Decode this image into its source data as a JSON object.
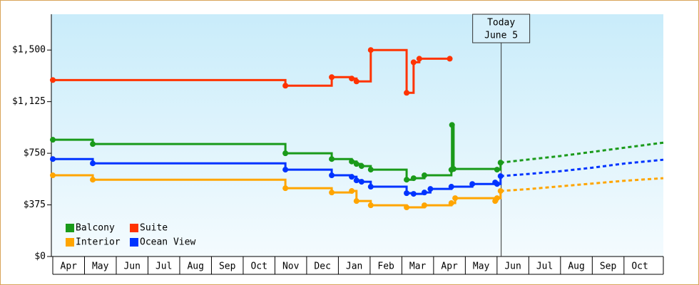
{
  "chart_data": {
    "type": "step",
    "ylim": [
      0,
      1760
    ],
    "yticks": [
      {
        "value": 0,
        "label": "$0"
      },
      {
        "value": 375,
        "label": "$375"
      },
      {
        "value": 750,
        "label": "$750"
      },
      {
        "value": 1125,
        "label": "$1,125"
      },
      {
        "value": 1500,
        "label": "$1,500"
      }
    ],
    "xlim": [
      0,
      19.24
    ],
    "categories": [
      "Apr",
      "May",
      "Jun",
      "Jul",
      "Aug",
      "Sep",
      "Oct",
      "Nov",
      "Dec",
      "Jan",
      "Feb",
      "Mar",
      "Apr",
      "May",
      "Jun",
      "Jul",
      "Aug",
      "Sep",
      "Oct"
    ],
    "legend": "lower left",
    "annotation": {
      "lines": [
        "Today",
        "June 5"
      ],
      "x": 14.13
    },
    "series": [
      {
        "name": "Balcony",
        "color": "#1a9a1a",
        "x": [
          0,
          1.26,
          7.33,
          8.79,
          9.42,
          9.57,
          9.73,
          10.02,
          11.15,
          11.37,
          11.71,
          12.56,
          12.58,
          12.63,
          14.0,
          14.11
        ],
        "values": [
          848,
          817,
          750,
          708,
          690,
          672,
          657,
          631,
          558,
          569,
          590,
          630,
          956,
          636,
          631,
          682
        ],
        "forecast_x": [
          14.11,
          15,
          16,
          17,
          18,
          19.24
        ],
        "forecast_values": [
          682,
          705,
          730,
          760,
          790,
          827
        ]
      },
      {
        "name": "Suite",
        "color": "#ff3300",
        "x": [
          0,
          7.33,
          8.79,
          9.42,
          9.57,
          10.02,
          11.15,
          11.37,
          11.55,
          12.51
        ],
        "values": [
          1282,
          1241,
          1303,
          1293,
          1272,
          1500,
          1189,
          1411,
          1437,
          1437
        ]
      },
      {
        "name": "Interior",
        "color": "#ffa500",
        "x": [
          0,
          1.26,
          7.33,
          8.79,
          9.42,
          9.57,
          10.02,
          11.15,
          11.71,
          12.56,
          12.68,
          13.94,
          14.0,
          14.11
        ],
        "values": [
          590,
          558,
          496,
          465,
          476,
          403,
          372,
          357,
          372,
          388,
          424,
          403,
          424,
          476
        ],
        "forecast_x": [
          14.11,
          15,
          16,
          17,
          18,
          19.24
        ],
        "forecast_values": [
          476,
          490,
          510,
          530,
          550,
          569
        ]
      },
      {
        "name": "Ocean View",
        "color": "#0033ff",
        "x": [
          0,
          1.26,
          7.33,
          8.79,
          9.42,
          9.57,
          9.73,
          10.02,
          11.15,
          11.37,
          11.71,
          11.9,
          12.56,
          13.22,
          13.94,
          14.0,
          14.11
        ],
        "values": [
          708,
          677,
          631,
          590,
          579,
          553,
          543,
          507,
          460,
          455,
          465,
          491,
          507,
          527,
          538,
          527,
          584
        ],
        "forecast_x": [
          14.11,
          15,
          16,
          17,
          18,
          19.24
        ],
        "forecast_values": [
          584,
          600,
          620,
          645,
          675,
          703
        ]
      }
    ]
  }
}
